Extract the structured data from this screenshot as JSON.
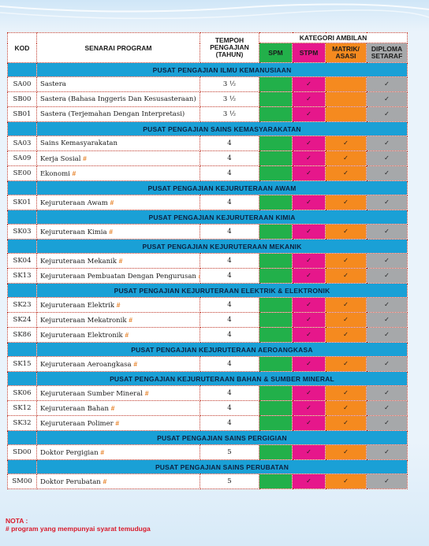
{
  "header": {
    "kod": "KOD",
    "program": "SENARAI PROGRAM",
    "tempoh_line1": "TEMPOH",
    "tempoh_line2": "PENGAJIAN",
    "tempoh_line3": "(TAHUN)",
    "kategori": "KATEGORI AMBILAN",
    "spm": "SPM",
    "stpm": "STPM",
    "matrik_line1": "MATRIK/",
    "matrik_line2": "ASASI",
    "diploma_line1": "DIPLOMA",
    "diploma_line2": "SETARAF"
  },
  "check_mark": "✓",
  "hash_mark": "#",
  "colors": {
    "section_blue": "#1aa0d6",
    "spm_green": "#22b04a",
    "stpm_pink": "#e6178b",
    "matrik_orange": "#f58a1f",
    "diploma_gray": "#a6a8aa",
    "dotted_border_red": "#c0392b"
  },
  "sections": [
    {
      "title": "PUSAT PENGAJIAN ILMU KEMANUSIAAN",
      "programs": [
        {
          "kod": "SA00",
          "nama": "Sastera",
          "hash": false,
          "tempoh": "3 ½",
          "stpm": true,
          "matrik": false,
          "diploma": true
        },
        {
          "kod": "SB00",
          "nama": "Sastera (Bahasa Inggeris Dan Kesusasteraan)",
          "hash": false,
          "tempoh": "3 ½",
          "stpm": true,
          "matrik": false,
          "diploma": true
        },
        {
          "kod": "SB01",
          "nama": "Sastera (Terjemahan Dengan Interpretasi)",
          "hash": false,
          "tempoh": "3 ½",
          "stpm": true,
          "matrik": false,
          "diploma": true
        }
      ]
    },
    {
      "title": "PUSAT PENGAJIAN SAINS KEMASYARAKATAN",
      "programs": [
        {
          "kod": "SA03",
          "nama": "Sains Kemasyarakatan",
          "hash": false,
          "tempoh": "4",
          "stpm": true,
          "matrik": true,
          "diploma": true
        },
        {
          "kod": "SA09",
          "nama": "Kerja Sosial",
          "hash": true,
          "tempoh": "4",
          "stpm": true,
          "matrik": true,
          "diploma": true
        },
        {
          "kod": "SE00",
          "nama": "Ekonomi",
          "hash": true,
          "tempoh": "4",
          "stpm": true,
          "matrik": true,
          "diploma": true
        }
      ]
    },
    {
      "title": "PUSAT PENGAJIAN KEJURUTERAAN AWAM",
      "programs": [
        {
          "kod": "SK01",
          "nama": "Kejuruteraan Awam",
          "hash": true,
          "tempoh": "4",
          "stpm": true,
          "matrik": true,
          "diploma": true
        }
      ]
    },
    {
      "title": "PUSAT PENGAJIAN KEJURUTERAAN KIMIA",
      "programs": [
        {
          "kod": "SK03",
          "nama": "Kejuruteraan Kimia",
          "hash": true,
          "tempoh": "4",
          "stpm": true,
          "matrik": true,
          "diploma": true
        }
      ]
    },
    {
      "title": "PUSAT PENGAJIAN KEJURUTERAAN MEKANIK",
      "programs": [
        {
          "kod": "SK04",
          "nama": "Kejuruteraan Mekanik",
          "hash": true,
          "tempoh": "4",
          "stpm": true,
          "matrik": true,
          "diploma": true
        },
        {
          "kod": "SK13",
          "nama": "Kejuruteraan Pembuatan Dengan Pengurusan",
          "hash": true,
          "tempoh": "4",
          "stpm": true,
          "matrik": true,
          "diploma": true
        }
      ]
    },
    {
      "title": "PUSAT PENGAJIAN KEJURUTERAAN ELEKTRIK & ELEKTRONIK",
      "programs": [
        {
          "kod": "SK23",
          "nama": "Kejuruteraan Elektrik",
          "hash": true,
          "tempoh": "4",
          "stpm": true,
          "matrik": true,
          "diploma": true
        },
        {
          "kod": "SK24",
          "nama": "Kejuruteraan Mekatronik",
          "hash": true,
          "tempoh": "4",
          "stpm": true,
          "matrik": true,
          "diploma": true
        },
        {
          "kod": "SK86",
          "nama": "Kejuruteraan Elektronik",
          "hash": true,
          "tempoh": "4",
          "stpm": true,
          "matrik": true,
          "diploma": true
        }
      ]
    },
    {
      "title": "PUSAT PENGAJIAN KEJURUTERAAN AEROANGKASA",
      "programs": [
        {
          "kod": "SK15",
          "nama": "Kejuruteraan Aeroangkasa",
          "hash": true,
          "tempoh": "4",
          "stpm": true,
          "matrik": true,
          "diploma": true
        }
      ]
    },
    {
      "title": "PUSAT PENGAJIAN KEJURUTERAAN BAHAN & SUMBER MINERAL",
      "programs": [
        {
          "kod": "SK06",
          "nama": "Kejuruteraan Sumber Mineral",
          "hash": true,
          "tempoh": "4",
          "stpm": true,
          "matrik": true,
          "diploma": true
        },
        {
          "kod": "SK12",
          "nama": "Kejuruteraan Bahan",
          "hash": true,
          "tempoh": "4",
          "stpm": true,
          "matrik": true,
          "diploma": true
        },
        {
          "kod": "SK32",
          "nama": "Kejuruteraan Polimer",
          "hash": true,
          "tempoh": "4",
          "stpm": true,
          "matrik": true,
          "diploma": true
        }
      ]
    },
    {
      "title": "PUSAT PENGAJIAN SAINS PERGIGIAN",
      "programs": [
        {
          "kod": "SD00",
          "nama": "Doktor Pergigian",
          "hash": true,
          "tempoh": "5",
          "stpm": true,
          "matrik": true,
          "diploma": true
        }
      ]
    },
    {
      "title": "PUSAT PENGAJIAN SAINS PERUBATAN",
      "programs": [
        {
          "kod": "SM00",
          "nama": "Doktor Perubatan",
          "hash": true,
          "tempoh": "5",
          "stpm": true,
          "matrik": true,
          "diploma": true
        }
      ]
    }
  ],
  "nota": {
    "label": "NOTA :",
    "text": "# program yang mempunyai syarat temuduga"
  }
}
